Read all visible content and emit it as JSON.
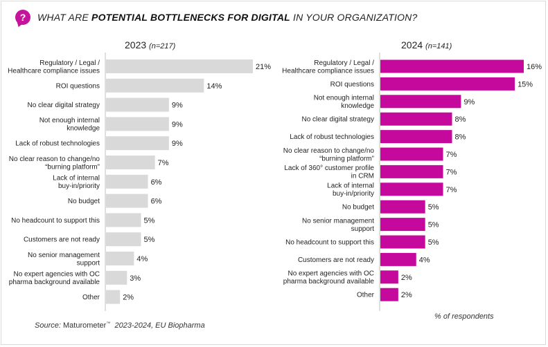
{
  "header": {
    "icon": "question-bubble-icon",
    "title_prefix": "What are ",
    "title_strong": "potential bottlenecks for digital",
    "title_suffix": " in your organization?"
  },
  "chart_data": [
    {
      "type": "bar",
      "orientation": "horizontal",
      "title": "2023",
      "subtitle": "(n=217)",
      "color": "#d9d9d9",
      "categories": [
        "Regulatory / Legal / Healthcare compliance issues",
        "ROI questions",
        "No clear digital strategy",
        "Not enough internal knowledge",
        "Lack of robust technologies",
        "No clear reason to change/no “burning platform”",
        "Lack of internal buy-in/priority",
        "No budget",
        "No headcount to support this",
        "Customers are not ready",
        "No senior management support",
        "No expert agencies with OC pharma background available",
        "Other"
      ],
      "label_lines": [
        [
          "Regulatory / Legal /",
          "Healthcare compliance issues"
        ],
        [
          "ROI questions"
        ],
        [
          "No clear digital strategy"
        ],
        [
          "Not enough internal",
          "knowledge"
        ],
        [
          "Lack of robust technologies"
        ],
        [
          "No clear reason to change/no",
          "“burning platform”"
        ],
        [
          "Lack of internal",
          "buy-in/priority"
        ],
        [
          "No budget"
        ],
        [
          "No headcount to support this"
        ],
        [
          "Customers are not ready"
        ],
        [
          "No senior management",
          "support"
        ],
        [
          "No expert agencies with OC",
          "pharma background available"
        ],
        [
          "Other"
        ]
      ],
      "values": [
        21,
        14,
        9,
        9,
        9,
        7,
        6,
        6,
        5,
        5,
        4,
        3,
        2
      ],
      "value_labels": [
        "21%",
        "14%",
        "9%",
        "9%",
        "9%",
        "7%",
        "6%",
        "6%",
        "5%",
        "5%",
        "4%",
        "3%",
        "2%"
      ],
      "xlabel": "% of respondents",
      "xlim": [
        0,
        21
      ]
    },
    {
      "type": "bar",
      "orientation": "horizontal",
      "title": "2024",
      "subtitle": "(n=141)",
      "color": "#c4099c",
      "categories": [
        "Regulatory / Legal / Healthcare compliance issues",
        "ROI questions",
        "Not enough internal knowledge",
        "No clear digital strategy",
        "Lack of robust technologies",
        "No clear reason to change/no “burning platform”",
        "Lack of 360° customer profile in CRM",
        "Lack of internal buy-in/priority",
        "No budget",
        "No senior management support",
        "No headcount to support this",
        "Customers are not ready",
        "No expert agencies with OC pharma background available",
        "Other"
      ],
      "label_lines": [
        [
          "Regulatory / Legal /",
          "Healthcare compliance issues"
        ],
        [
          "ROI questions"
        ],
        [
          "Not enough internal",
          "knowledge"
        ],
        [
          "No clear digital strategy"
        ],
        [
          "Lack of robust technologies"
        ],
        [
          "No clear reason to change/no",
          "“burning platform”"
        ],
        [
          "Lack of 360° customer profile",
          "in CRM"
        ],
        [
          "Lack of internal",
          "buy-in/priority"
        ],
        [
          "No budget"
        ],
        [
          "No senior management",
          "support"
        ],
        [
          "No headcount to support this"
        ],
        [
          "Customers are not ready"
        ],
        [
          "No expert agencies with OC",
          "pharma background available"
        ],
        [
          "Other"
        ]
      ],
      "values": [
        16,
        15,
        9,
        8,
        8,
        7,
        7,
        7,
        5,
        5,
        5,
        4,
        2,
        2
      ],
      "value_labels": [
        "16%",
        "15%",
        "9%",
        "8%",
        "8%",
        "7%",
        "7%",
        "7%",
        "5%",
        "5%",
        "5%",
        "4%",
        "2%",
        "2%"
      ],
      "xlabel": "% of respondents",
      "xlim": [
        0,
        16
      ]
    }
  ],
  "footer": {
    "source_label": "Source:",
    "source_brand": "Maturometer",
    "source_tm": "™",
    "source_rest": "2023-2024, EU Biopharma",
    "respondents": "% of respondents"
  }
}
